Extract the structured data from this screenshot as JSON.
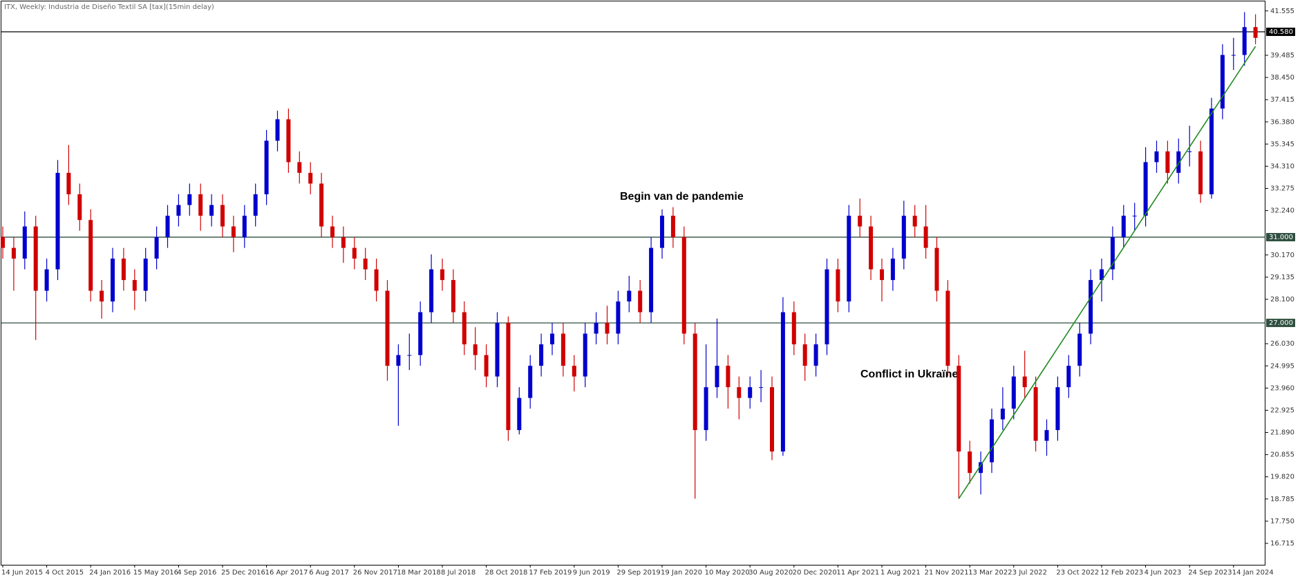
{
  "chart_data": {
    "type": "candlestick",
    "title": "ITX, Weekly:  Industria de Diseño Textil SA [tax](15min delay)",
    "annotations": [
      "Begin van de pandemie",
      "Conflict in Ukraïne"
    ],
    "up_color": "#0000cd",
    "down_color": "#d00000",
    "categories": [
      "14 Jun 2015",
      null,
      null,
      null,
      "4 Oct 2015",
      null,
      null,
      null,
      "24 Jan 2016",
      null,
      null,
      null,
      "15 May 2016",
      null,
      null,
      null,
      "4 Sep 2016",
      null,
      null,
      null,
      "25 Dec 2016",
      null,
      null,
      null,
      "16 Apr 2017",
      null,
      null,
      null,
      "6 Aug 2017",
      null,
      null,
      null,
      "26 Nov 2017",
      null,
      null,
      null,
      "18 Mar 2018",
      null,
      null,
      null,
      "8 Jul 2018",
      null,
      null,
      null,
      "28 Oct 2018",
      null,
      null,
      null,
      "17 Feb 2019",
      null,
      null,
      null,
      "9 Jun 2019",
      null,
      null,
      null,
      "29 Sep 2019",
      null,
      null,
      null,
      "19 Jan 2020",
      null,
      null,
      null,
      "10 May 2020",
      null,
      null,
      null,
      "30 Aug 2020",
      null,
      null,
      null,
      "20 Dec 2020",
      null,
      null,
      null,
      "11 Apr 2021",
      null,
      null,
      null,
      "1 Aug 2021",
      null,
      null,
      null,
      "21 Nov 2021",
      null,
      null,
      null,
      "13 Mar 2022",
      null,
      null,
      null,
      "3 Jul 2022",
      null,
      null,
      null,
      "23 Oct 2022",
      null,
      null,
      null,
      "12 Feb 2023",
      null,
      null,
      null,
      "4 Jun 2023",
      null,
      null,
      null,
      "24 Sep 2023",
      null,
      null,
      null,
      "14 Jan 2024",
      null,
      null
    ],
    "open": [
      31,
      30.5,
      30,
      31.5,
      28.5,
      29.5,
      34,
      33,
      31.8,
      28.5,
      28,
      30,
      29,
      28.5,
      30,
      31,
      32,
      32.5,
      33,
      32,
      32.5,
      31.5,
      31,
      32,
      33,
      35.5,
      36.5,
      34.5,
      34,
      33.5,
      31.5,
      31,
      30.5,
      30,
      29.5,
      28.5,
      25,
      25.5,
      25.5,
      27.5,
      29.5,
      29,
      27.5,
      26,
      25.5,
      24.5,
      27,
      22,
      23.5,
      25,
      26,
      26.5,
      25,
      24.5,
      26.5,
      27,
      26.5,
      28,
      28.5,
      27.5,
      30.5,
      32,
      31,
      26.5,
      22,
      24,
      25,
      24,
      23.5,
      24,
      24,
      21,
      27.5,
      26,
      25,
      26,
      29.5,
      28,
      32,
      31.5,
      29.5,
      29,
      30,
      32,
      31.5,
      30.5,
      28.5,
      25,
      21,
      20,
      20.5,
      22.5,
      23,
      24.5,
      24,
      21.5,
      22,
      24,
      25,
      26.5,
      29,
      29.5,
      31,
      32,
      32,
      34.5,
      35,
      34,
      35,
      35,
      33,
      37,
      39.5,
      39.5,
      40.8
    ],
    "high": [
      31.5,
      31,
      32.2,
      32,
      30,
      34.6,
      35.3,
      33.5,
      32.3,
      29,
      30.5,
      30.5,
      29.5,
      30.5,
      31.5,
      32.5,
      33,
      33.5,
      33.5,
      33,
      33,
      32,
      32.5,
      33.5,
      36,
      36.9,
      37,
      35,
      34.5,
      34,
      32,
      31.5,
      31,
      30.5,
      30,
      29,
      26,
      26.5,
      28,
      30.2,
      30,
      29.5,
      28,
      26.8,
      26,
      27.5,
      27.3,
      24,
      25.5,
      26.5,
      27,
      27,
      25.5,
      27,
      27.5,
      27.8,
      28.5,
      29.2,
      29,
      31,
      32.3,
      32.4,
      31.5,
      27,
      26,
      27.2,
      25.5,
      24.5,
      24.5,
      24.8,
      24.5,
      28.2,
      28,
      26.5,
      26.5,
      30,
      30,
      32.5,
      32.8,
      32,
      30,
      30.5,
      32.7,
      32.5,
      32.5,
      31,
      29,
      25.5,
      21.5,
      21,
      23,
      24,
      25,
      25.7,
      24.5,
      22.5,
      24.5,
      25.5,
      27,
      29.5,
      30,
      31.5,
      32.5,
      32.6,
      35.2,
      35.5,
      35.5,
      35.6,
      36.2,
      35.5,
      37.5,
      40,
      40.3,
      41.5,
      41.4
    ],
    "low": [
      30,
      28.5,
      29.5,
      26.2,
      28,
      29,
      32.5,
      31.3,
      28,
      27.2,
      27.5,
      28.5,
      27.6,
      28,
      29.5,
      30.5,
      31.5,
      32,
      31.3,
      31.5,
      31,
      30.3,
      30.5,
      31.5,
      32.5,
      35,
      34,
      33.5,
      33,
      31,
      30.5,
      29.8,
      29.5,
      29,
      28,
      24.3,
      22.2,
      24.8,
      25,
      27,
      28.5,
      27,
      25.5,
      24.8,
      24,
      24,
      21.5,
      21.8,
      23,
      24.5,
      25.5,
      24.5,
      23.8,
      24,
      26,
      26,
      26,
      27.5,
      27,
      27,
      30,
      30.5,
      26,
      18.8,
      21.5,
      23.5,
      23,
      22.5,
      23,
      23.3,
      20.6,
      20.8,
      25.5,
      24.3,
      24.5,
      25.5,
      27.5,
      27.5,
      31,
      29,
      28,
      28.5,
      29.5,
      31,
      30,
      28,
      24.5,
      18.8,
      19.5,
      19,
      20,
      22,
      22.5,
      23.5,
      21,
      20.8,
      21.5,
      23.5,
      24.5,
      26,
      28,
      29,
      30.5,
      31.3,
      31.5,
      34,
      33.5,
      33.5,
      34.3,
      32.6,
      32.8,
      36.5,
      38.8,
      39,
      40
    ],
    "close": [
      30.5,
      30,
      31.5,
      28.5,
      29.5,
      34,
      33,
      31.8,
      28.5,
      28,
      30,
      29,
      28.5,
      30,
      31,
      32,
      32.5,
      33,
      32,
      32.5,
      31.5,
      31,
      32,
      33,
      35.5,
      36.5,
      34.5,
      34,
      33.5,
      31.5,
      31,
      30.5,
      30,
      29.5,
      28.5,
      25,
      25.5,
      25.5,
      27.5,
      29.5,
      29,
      27.5,
      26,
      25.5,
      24.5,
      27,
      22,
      23.5,
      25,
      26,
      26.5,
      25,
      24.5,
      26.5,
      27,
      26.5,
      28,
      28.5,
      27.5,
      30.5,
      32,
      31,
      26.5,
      22,
      24,
      25,
      24,
      23.5,
      24,
      24,
      21,
      27.5,
      26,
      25,
      26,
      29.5,
      28,
      32,
      31.5,
      29.5,
      29,
      30,
      32,
      31.5,
      30.5,
      28.5,
      25,
      21,
      20,
      20.5,
      22.5,
      23,
      24.5,
      24,
      21.5,
      22,
      24,
      25,
      26.5,
      29,
      29.5,
      31,
      32,
      32,
      34.5,
      35,
      34,
      35,
      35,
      33,
      37,
      39.5,
      39.5,
      40.8,
      40.3
    ],
    "levels": [
      {
        "value": 40.58,
        "label": "40.580",
        "color": "#000000"
      },
      {
        "value": 31,
        "label": "31.000",
        "color": "#2f4f3f"
      },
      {
        "value": 27,
        "label": "27.000",
        "color": "#2f4f3f"
      }
    ],
    "trendline": {
      "color": "#1f8a1f",
      "start_index": 87,
      "start_value": 18.8,
      "end_index": 114,
      "end_value": 39.9
    },
    "ylim": [
      15.715,
      42.0
    ],
    "yticks": [
      16.715,
      {
        "value": 17.75,
        "label": "17.750"
      },
      18.785,
      {
        "value": 19.82,
        "label": "19.820"
      },
      20.855,
      {
        "value": 21.89,
        "label": "21.890"
      },
      22.925,
      {
        "value": 23.96,
        "label": "23.960"
      },
      24.995,
      {
        "value": 26.03,
        "label": "26.030"
      },
      {
        "value": 28.1,
        "label": "28.100"
      },
      29.135,
      {
        "value": 30.17,
        "label": "30.170"
      },
      {
        "value": 32.24,
        "label": "32.240"
      },
      33.275,
      {
        "value": 34.31,
        "label": "34.310"
      },
      35.345,
      {
        "value": 36.38,
        "label": "36.380"
      },
      37.415,
      {
        "value": 38.45,
        "label": "38.450"
      },
      39.485,
      41.555
    ]
  }
}
